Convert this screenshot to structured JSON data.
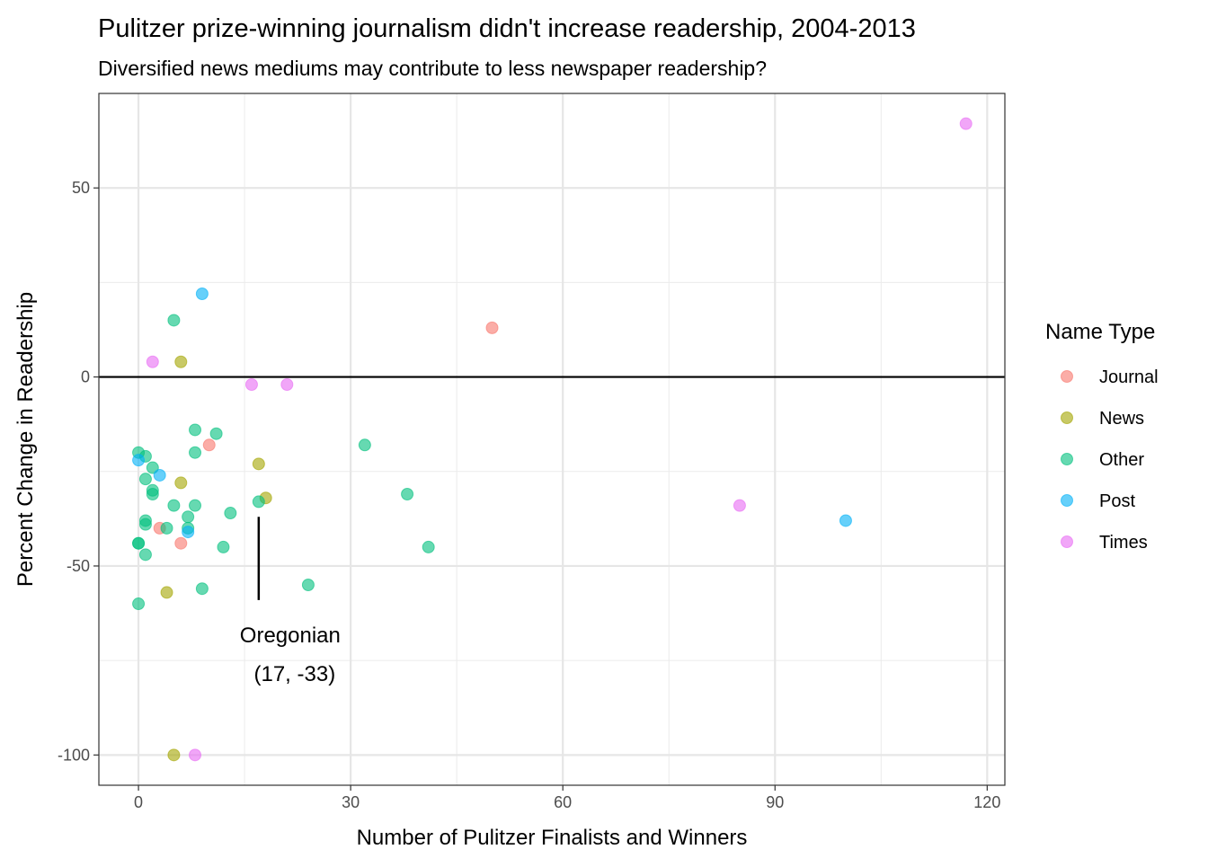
{
  "chart_data": {
    "type": "scatter",
    "title": "Pulitzer prize-winning journalism didn't increase readership, 2004-2013",
    "subtitle": "Diversified news mediums may contribute to less newspaper readership?",
    "xlabel": "Number of Pulitzer Finalists and Winners",
    "ylabel": "Percent Change in Readership",
    "xlim": [
      -5.6,
      122.5
    ],
    "ylim": [
      -108,
      75
    ],
    "xticks": [
      0,
      30,
      60,
      90,
      120
    ],
    "yticks": [
      -100,
      -50,
      0,
      50
    ],
    "xtick_labels": [
      "0",
      "30",
      "60",
      "90",
      "120"
    ],
    "ytick_labels": [
      "-100",
      "-50",
      "0",
      "50"
    ],
    "grid": true,
    "hline": 0,
    "legend": {
      "title": "Name Type",
      "position": "right"
    },
    "annotation": {
      "line1": "Oregonian",
      "line2": "(17, -33)",
      "x": 17,
      "y_from": -37,
      "y_to": -59
    },
    "series": [
      {
        "name": "Journal",
        "color": "#F8766D",
        "points": [
          [
            50,
            13
          ],
          [
            10,
            -18
          ],
          [
            3,
            -40
          ],
          [
            6,
            -44
          ]
        ]
      },
      {
        "name": "News",
        "color": "#A3A500",
        "points": [
          [
            6,
            4
          ],
          [
            17,
            -23
          ],
          [
            18,
            -32
          ],
          [
            6,
            -28
          ],
          [
            4,
            -57
          ],
          [
            5,
            -100
          ]
        ]
      },
      {
        "name": "Other",
        "color": "#00BF7D",
        "points": [
          [
            5,
            15
          ],
          [
            8,
            -14
          ],
          [
            11,
            -15
          ],
          [
            8,
            -20
          ],
          [
            0,
            -20
          ],
          [
            1,
            -21
          ],
          [
            2,
            -24
          ],
          [
            1,
            -27
          ],
          [
            2,
            -30
          ],
          [
            2,
            -31
          ],
          [
            5,
            -34
          ],
          [
            8,
            -34
          ],
          [
            7,
            -37
          ],
          [
            1,
            -38
          ],
          [
            1,
            -39
          ],
          [
            4,
            -40
          ],
          [
            7,
            -40
          ],
          [
            13,
            -36
          ],
          [
            17,
            -33
          ],
          [
            0,
            -44
          ],
          [
            0,
            -44
          ],
          [
            12,
            -45
          ],
          [
            1,
            -47
          ],
          [
            9,
            -56
          ],
          [
            24,
            -55
          ],
          [
            0,
            -60
          ],
          [
            32,
            -18
          ],
          [
            38,
            -31
          ],
          [
            41,
            -45
          ]
        ]
      },
      {
        "name": "Post",
        "color": "#00B0F6",
        "points": [
          [
            9,
            22
          ],
          [
            0,
            -22
          ],
          [
            3,
            -26
          ],
          [
            7,
            -41
          ],
          [
            100,
            -38
          ]
        ]
      },
      {
        "name": "Times",
        "color": "#E76BF3",
        "points": [
          [
            117,
            67
          ],
          [
            2,
            4
          ],
          [
            16,
            -2
          ],
          [
            21,
            -2
          ],
          [
            85,
            -34
          ],
          [
            8,
            -100
          ]
        ]
      }
    ]
  }
}
